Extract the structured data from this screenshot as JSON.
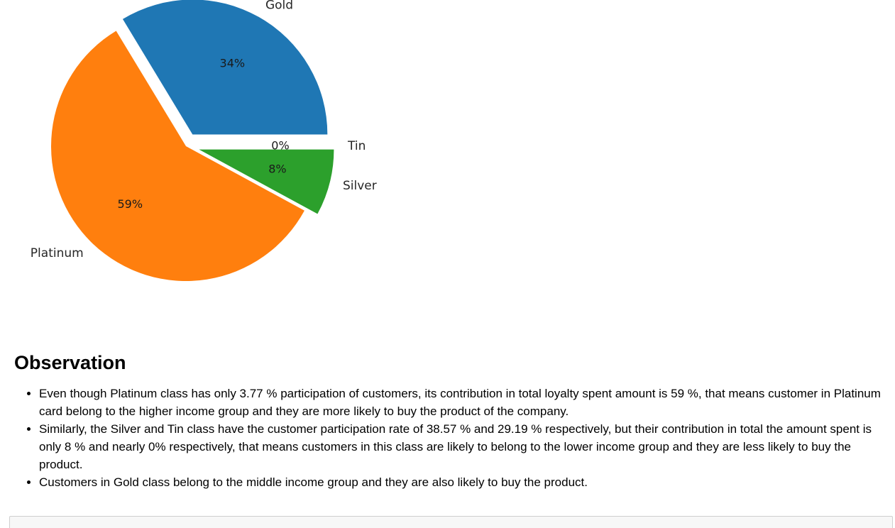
{
  "chart_data": {
    "type": "pie",
    "title": "",
    "slices": [
      {
        "label": "Gold",
        "value": 34,
        "pct_text": "34%",
        "color": "#1f77b4",
        "explode": 0.1
      },
      {
        "label": "Platinum",
        "value": 59,
        "pct_text": "59%",
        "color": "#ff7f0e",
        "explode": 0
      },
      {
        "label": "Silver",
        "value": 8,
        "pct_text": "8%",
        "color": "#2ca02c",
        "explode": 0.1
      },
      {
        "label": "Tin",
        "value": 0,
        "pct_text": "0%",
        "color": "#d62728",
        "explode": 0.1
      }
    ],
    "startangle": 0,
    "counterclock": true
  },
  "observation": {
    "title": "Observation",
    "items": [
      "Even though Platinum class has only 3.77 % participation of customers, its contribution in total loyalty spent amount is 59 %, that means customer in Platinum card belong to the higher income group and they are more likely to buy the product of the company.",
      "Similarly, the Silver and Tin class have the customer participation rate of 38.57 % and 29.19 % respectively, but their contribution in total the amount spent is only 8 % and nearly 0% respectively, that means customers in this class are likely to belong to the lower income group and they are less likely to buy the product.",
      "Customers in Gold class belong to the middle income group and they are also likely to buy the product."
    ]
  }
}
